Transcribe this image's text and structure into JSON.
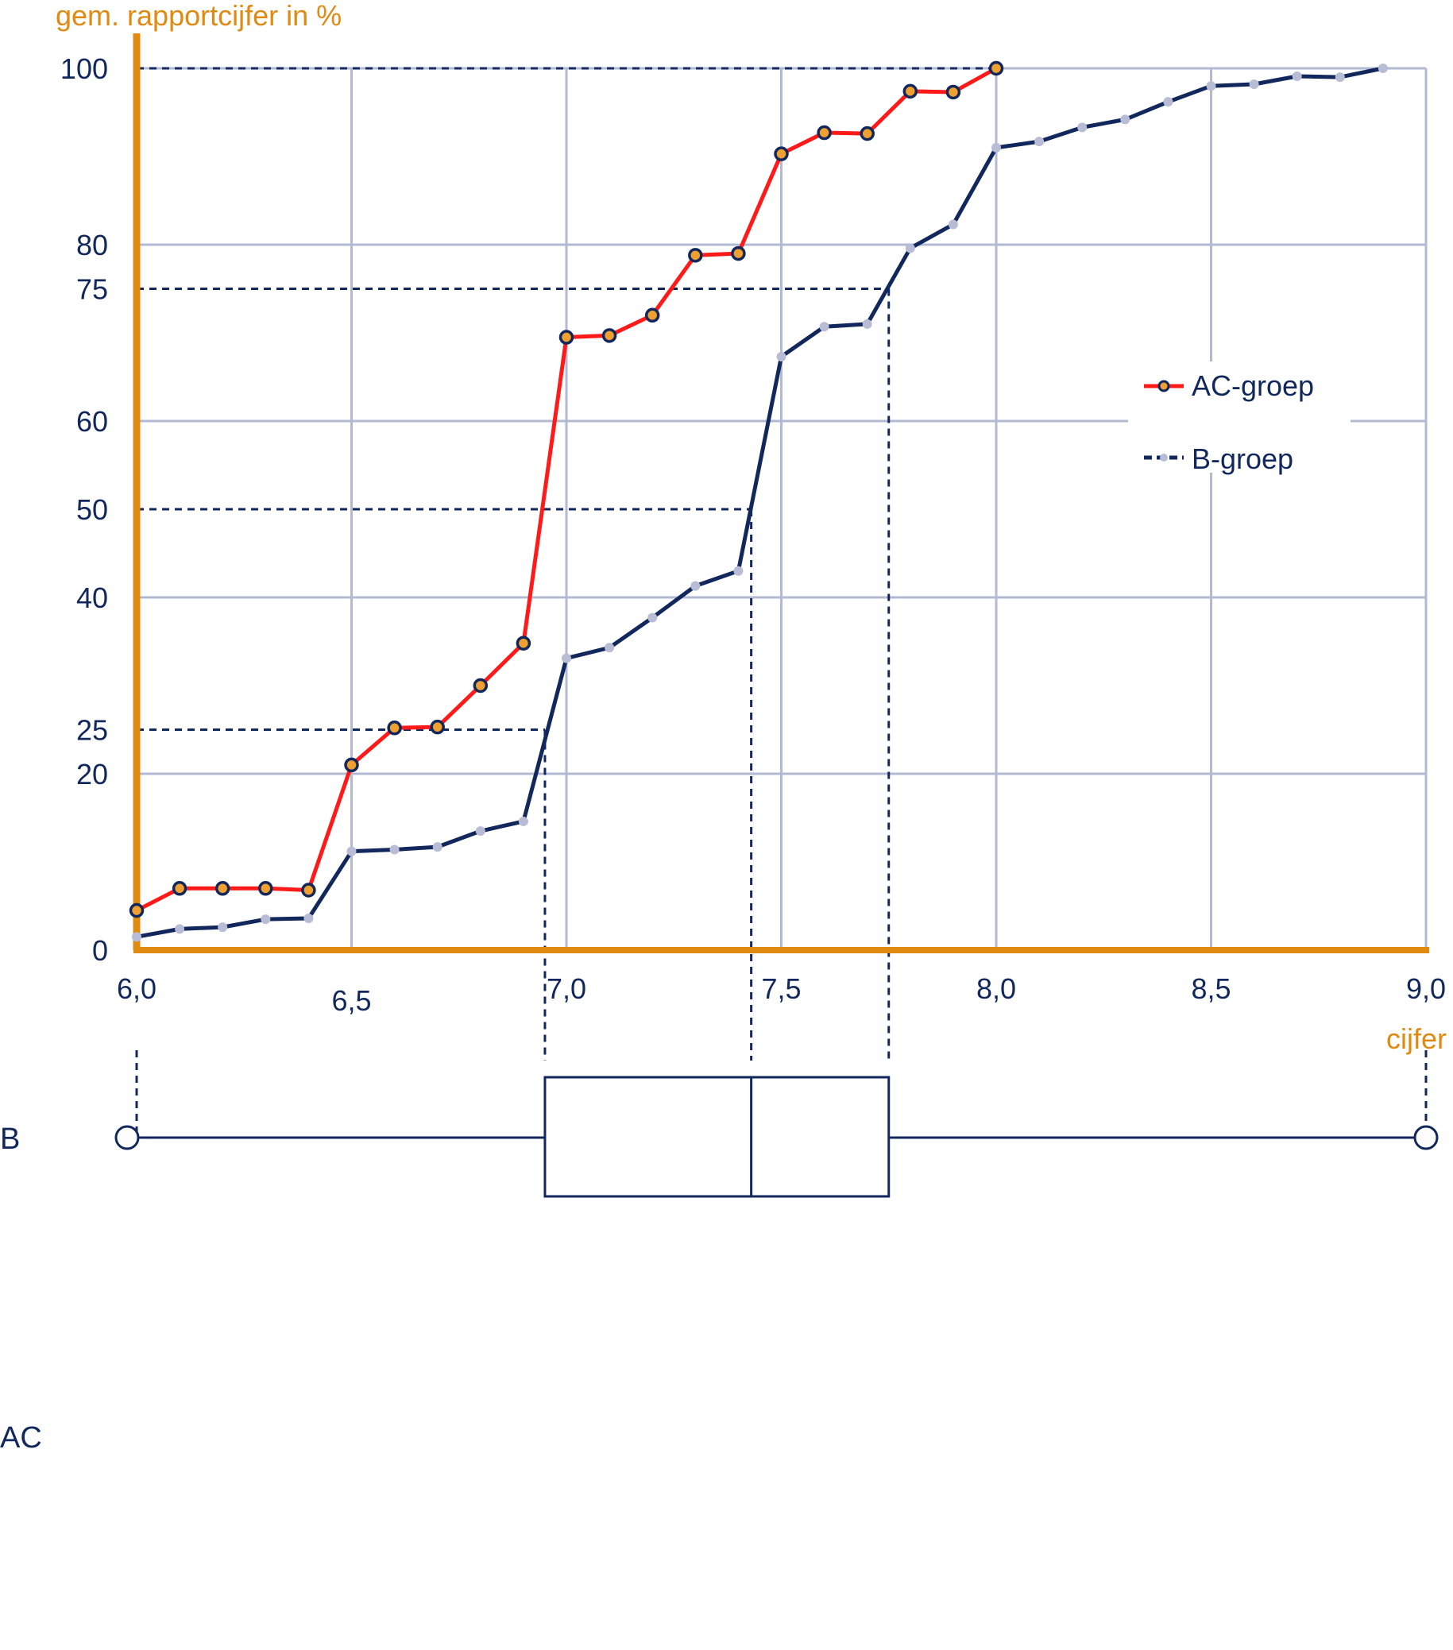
{
  "chart_data": {
    "type": "line",
    "ylabel": "gem. rapportcijfer in %",
    "xlabel": "cijfer",
    "xlim": [
      6.0,
      9.0
    ],
    "ylim": [
      0,
      100
    ],
    "x_ticks": [
      {
        "value": 6.0,
        "label": "6,0"
      },
      {
        "value": 6.5,
        "label": "6,5"
      },
      {
        "value": 7.0,
        "label": "7,0"
      },
      {
        "value": 7.5,
        "label": "7,5"
      },
      {
        "value": 8.0,
        "label": "8,0"
      },
      {
        "value": 8.5,
        "label": "8,5"
      },
      {
        "value": 9.0,
        "label": "9,0"
      }
    ],
    "y_ticks": [
      {
        "value": 0,
        "label": "0"
      },
      {
        "value": 20,
        "label": "20"
      },
      {
        "value": 25,
        "label": "25"
      },
      {
        "value": 40,
        "label": "40"
      },
      {
        "value": 50,
        "label": "50"
      },
      {
        "value": 60,
        "label": "60"
      },
      {
        "value": 75,
        "label": "75"
      },
      {
        "value": 80,
        "label": "80"
      },
      {
        "value": 100,
        "label": "100"
      }
    ],
    "grid": true,
    "legend_position": "right",
    "series": [
      {
        "name": "AC-groep",
        "color": "#ff1a1a",
        "marker_color": "#f0a030",
        "marker_edge": "#12285c",
        "points": [
          [
            6.0,
            4.5
          ],
          [
            6.1,
            7.0
          ],
          [
            6.2,
            7.0
          ],
          [
            6.3,
            7.0
          ],
          [
            6.4,
            6.8
          ],
          [
            6.5,
            21.0
          ],
          [
            6.6,
            25.2
          ],
          [
            6.7,
            25.3
          ],
          [
            6.8,
            30.0
          ],
          [
            6.9,
            34.8
          ],
          [
            7.0,
            69.5
          ],
          [
            7.1,
            69.7
          ],
          [
            7.2,
            72.0
          ],
          [
            7.3,
            78.8
          ],
          [
            7.4,
            79.0
          ],
          [
            7.5,
            90.3
          ],
          [
            7.6,
            92.7
          ],
          [
            7.7,
            92.6
          ],
          [
            7.8,
            97.4
          ],
          [
            7.9,
            97.3
          ],
          [
            8.0,
            100.0
          ]
        ]
      },
      {
        "name": "B-groep",
        "color": "#12285c",
        "marker_color": "#b8bcd4",
        "points": [
          [
            6.0,
            1.5
          ],
          [
            6.1,
            2.4
          ],
          [
            6.2,
            2.6
          ],
          [
            6.3,
            3.5
          ],
          [
            6.4,
            3.6
          ],
          [
            6.5,
            11.2
          ],
          [
            6.6,
            11.4
          ],
          [
            6.7,
            11.7
          ],
          [
            6.8,
            13.5
          ],
          [
            6.9,
            14.6
          ],
          [
            7.0,
            33.1
          ],
          [
            7.1,
            34.3
          ],
          [
            7.2,
            37.7
          ],
          [
            7.3,
            41.3
          ],
          [
            7.4,
            43.0
          ],
          [
            7.5,
            67.3
          ],
          [
            7.6,
            70.7
          ],
          [
            7.7,
            71.0
          ],
          [
            7.8,
            79.6
          ],
          [
            7.9,
            82.3
          ],
          [
            8.0,
            91.0
          ],
          [
            8.1,
            91.7
          ],
          [
            8.2,
            93.3
          ],
          [
            8.3,
            94.2
          ],
          [
            8.4,
            96.2
          ],
          [
            8.5,
            98.0
          ],
          [
            8.6,
            98.2
          ],
          [
            8.7,
            99.1
          ],
          [
            8.8,
            99.0
          ],
          [
            8.9,
            100.0
          ]
        ]
      }
    ],
    "reference_lines": [
      {
        "y": 100,
        "x_end": 8.0
      },
      {
        "y": 75,
        "x_end": 7.75
      },
      {
        "y": 50,
        "x_end": 7.43
      },
      {
        "y": 25,
        "x_end": 6.95
      }
    ],
    "boxplots": [
      {
        "label": "B",
        "min": 6.0,
        "q1": 6.95,
        "median": 7.43,
        "q3": 7.75,
        "max": 9.0
      },
      {
        "label": "AC"
      }
    ]
  }
}
